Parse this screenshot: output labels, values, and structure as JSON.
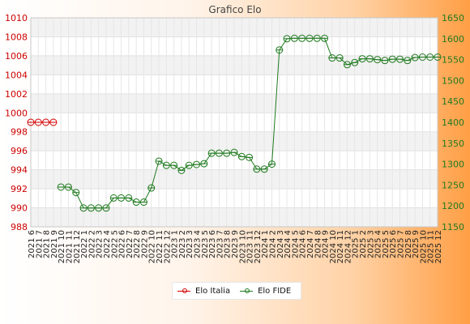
{
  "chart_data": {
    "type": "line",
    "title": "Grafico Elo",
    "categories": [
      "2021 6",
      "2021 7",
      "2021 8",
      "2021 9",
      "2021 10",
      "2021 11",
      "2021 12",
      "2022 1",
      "2022 2",
      "2022 3",
      "2022 4",
      "2022 5",
      "2022 6",
      "2022 7",
      "2022 8",
      "2022 9",
      "2022 10",
      "2022 11",
      "2022 12",
      "2023 1",
      "2023 2",
      "2023 3",
      "2023 4",
      "2023 5",
      "2023 6",
      "2023 7",
      "2023 8",
      "2023 9",
      "2023 10",
      "2023 11",
      "2023 12",
      "2024 1",
      "2024 2",
      "2024 3",
      "2024 4",
      "2024 5",
      "2024 6",
      "2024 7",
      "2024 8",
      "2024 9",
      "2024 10",
      "2024 11",
      "2024 12",
      "2025 1",
      "2025 2",
      "2025 3",
      "2025 4",
      "2025 5",
      "2025 6",
      "2025 7",
      "2025 8",
      "2025 9",
      "2025 10",
      "2025 11",
      "2025 12"
    ],
    "y_left": {
      "min": 988,
      "max": 1010,
      "step": 2,
      "ticks": [
        "988",
        "990",
        "992",
        "994",
        "996",
        "998",
        "1000",
        "1002",
        "1004",
        "1006",
        "1008",
        "1010"
      ]
    },
    "y_right": {
      "min": 1150,
      "max": 1650,
      "step": 50,
      "ticks": [
        "1150",
        "1200",
        "1250",
        "1300",
        "1350",
        "1400",
        "1450",
        "1500",
        "1550",
        "1600",
        "1650"
      ]
    },
    "grid": true,
    "legend_position": "bottom",
    "series": [
      {
        "name": "Elo Italia",
        "axis": "left",
        "color": "#d40000",
        "values": [
          999,
          999,
          999,
          999,
          null,
          null,
          null,
          null,
          null,
          null,
          null,
          null,
          null,
          null,
          null,
          null,
          null,
          null,
          null,
          null,
          null,
          null,
          null,
          null,
          null,
          null,
          null,
          null,
          null,
          null,
          null,
          null,
          null,
          null,
          null,
          null,
          null,
          null,
          null,
          null,
          null,
          null,
          null,
          null,
          null,
          null,
          null,
          null,
          null,
          null,
          null,
          null,
          null,
          null,
          null
        ]
      },
      {
        "name": "Elo FIDE",
        "axis": "right",
        "color": "#1f7a1f",
        "values": [
          null,
          null,
          null,
          null,
          1245,
          1245,
          1232,
          1195,
          1195,
          1195,
          1195,
          1219,
          1219,
          1219,
          1209,
          1209,
          1243,
          1307,
          1297,
          1297,
          1285,
          1297,
          1299,
          1301,
          1326,
          1326,
          1326,
          1328,
          1318,
          1316,
          1288,
          1288,
          1300,
          1573,
          1600,
          1601,
          1601,
          1601,
          1601,
          1601,
          1554,
          1554,
          1538,
          1543,
          1552,
          1552,
          1550,
          1548,
          1551,
          1551,
          1548,
          1555,
          1556,
          1556,
          1556
        ]
      }
    ]
  }
}
